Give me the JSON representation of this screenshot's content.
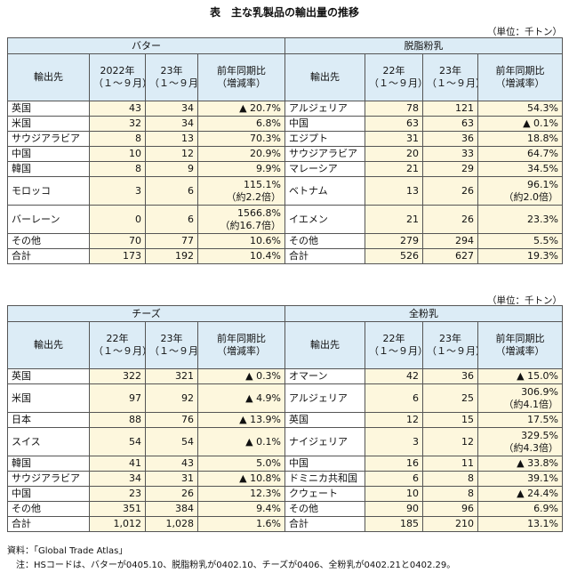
{
  "title": "表　主な乳製品の輸出量の推移",
  "tables": [
    {
      "unit": "（単位：千トン）",
      "left": {
        "name": "バター",
        "headers": [
          [
            "輸出先"
          ],
          [
            "2022年",
            "（１～９月）"
          ],
          [
            "23年",
            "（１～９月）"
          ],
          [
            "前年同期比",
            "（増減率）"
          ]
        ],
        "rows": [
          [
            [
              "英国"
            ],
            [
              "43"
            ],
            [
              "34"
            ],
            [
              "▲ 20.7%"
            ]
          ],
          [
            [
              "米国"
            ],
            [
              "32"
            ],
            [
              "34"
            ],
            [
              "6.8%"
            ]
          ],
          [
            [
              "サウジアラビア"
            ],
            [
              "8"
            ],
            [
              "13"
            ],
            [
              "70.3%"
            ]
          ],
          [
            [
              "中国"
            ],
            [
              "10"
            ],
            [
              "12"
            ],
            [
              "20.9%"
            ]
          ],
          [
            [
              "韓国"
            ],
            [
              "8"
            ],
            [
              "9"
            ],
            [
              "9.9%"
            ]
          ],
          [
            [
              "モロッコ"
            ],
            [
              "3"
            ],
            [
              "6"
            ],
            [
              "115.1%",
              "（約2.2倍）"
            ]
          ],
          [
            [
              "バーレーン"
            ],
            [
              "0"
            ],
            [
              "6"
            ],
            [
              "1566.8%",
              "（約16.7倍）"
            ]
          ],
          [
            [
              "その他"
            ],
            [
              "70"
            ],
            [
              "77"
            ],
            [
              "10.6%"
            ]
          ],
          [
            [
              "合計"
            ],
            [
              "173"
            ],
            [
              "192"
            ],
            [
              "10.4%"
            ]
          ]
        ]
      },
      "right": {
        "name": "脱脂粉乳",
        "headers": [
          [
            "輸出先"
          ],
          [
            "22年",
            "（１～９月）"
          ],
          [
            "23年",
            "（１～９月）"
          ],
          [
            "前年同期比",
            "（増減率）"
          ]
        ],
        "rows": [
          [
            [
              "アルジェリア"
            ],
            [
              "78"
            ],
            [
              "121"
            ],
            [
              "54.3%"
            ]
          ],
          [
            [
              "中国"
            ],
            [
              "63"
            ],
            [
              "63"
            ],
            [
              "▲ 0.1%"
            ]
          ],
          [
            [
              "エジプト"
            ],
            [
              "31"
            ],
            [
              "36"
            ],
            [
              "18.8%"
            ]
          ],
          [
            [
              "サウジアラビア"
            ],
            [
              "20"
            ],
            [
              "33"
            ],
            [
              "64.7%"
            ]
          ],
          [
            [
              "マレーシア"
            ],
            [
              "21"
            ],
            [
              "29"
            ],
            [
              "34.5%"
            ]
          ],
          [
            [
              "ベトナム"
            ],
            [
              "13"
            ],
            [
              "26"
            ],
            [
              "96.1%",
              "（約2.0倍）"
            ]
          ],
          [
            [
              "イエメン"
            ],
            [
              "21"
            ],
            [
              "26"
            ],
            [
              "23.3%"
            ]
          ],
          [
            [
              "その他"
            ],
            [
              "279"
            ],
            [
              "294"
            ],
            [
              "5.5%"
            ]
          ],
          [
            [
              "合計"
            ],
            [
              "526"
            ],
            [
              "627"
            ],
            [
              "19.3%"
            ]
          ]
        ]
      }
    },
    {
      "unit": "（単位：千トン）",
      "left": {
        "name": "チーズ",
        "headers": [
          [
            "輸出先"
          ],
          [
            "22年",
            "（１～９月）"
          ],
          [
            "23年",
            "（１～９月）"
          ],
          [
            "前年同期比",
            "（増減率）"
          ]
        ],
        "rows": [
          [
            [
              "英国"
            ],
            [
              "322"
            ],
            [
              "321"
            ],
            [
              "▲ 0.3%"
            ]
          ],
          [
            [
              "米国"
            ],
            [
              "97"
            ],
            [
              "92"
            ],
            [
              "▲ 4.9%"
            ]
          ],
          [
            [
              "日本"
            ],
            [
              "88"
            ],
            [
              "76"
            ],
            [
              "▲ 13.9%"
            ]
          ],
          [
            [
              "スイス"
            ],
            [
              "54"
            ],
            [
              "54"
            ],
            [
              "▲ 0.1%"
            ]
          ],
          [
            [
              "韓国"
            ],
            [
              "41"
            ],
            [
              "43"
            ],
            [
              "5.0%"
            ]
          ],
          [
            [
              "サウジアラビア"
            ],
            [
              "34"
            ],
            [
              "31"
            ],
            [
              "▲ 10.8%"
            ]
          ],
          [
            [
              "中国"
            ],
            [
              "23"
            ],
            [
              "26"
            ],
            [
              "12.3%"
            ]
          ],
          [
            [
              "その他"
            ],
            [
              "351"
            ],
            [
              "384"
            ],
            [
              "9.4%"
            ]
          ],
          [
            [
              "合計"
            ],
            [
              "1,012"
            ],
            [
              "1,028"
            ],
            [
              "1.6%"
            ]
          ]
        ]
      },
      "right": {
        "name": "全粉乳",
        "headers": [
          [
            "輸出先"
          ],
          [
            "22年",
            "（１～９月）"
          ],
          [
            "23年",
            "（１～９月）"
          ],
          [
            "前年同期比",
            "（増減率）"
          ]
        ],
        "rows": [
          [
            [
              "オマーン"
            ],
            [
              "42"
            ],
            [
              "36"
            ],
            [
              "▲ 15.0%"
            ]
          ],
          [
            [
              "アルジェリア"
            ],
            [
              "6"
            ],
            [
              "25"
            ],
            [
              "306.9%",
              "（約4.1倍）"
            ]
          ],
          [
            [
              "英国"
            ],
            [
              "12"
            ],
            [
              "15"
            ],
            [
              "17.5%"
            ]
          ],
          [
            [
              "ナイジェリア"
            ],
            [
              "3"
            ],
            [
              "12"
            ],
            [
              "329.5%",
              "（約4.3倍）"
            ]
          ],
          [
            [
              "中国"
            ],
            [
              "16"
            ],
            [
              "11"
            ],
            [
              "▲ 33.8%"
            ]
          ],
          [
            [
              "ドミニカ共和国"
            ],
            [
              "6"
            ],
            [
              "8"
            ],
            [
              "39.1%"
            ]
          ],
          [
            [
              "クウェート"
            ],
            [
              "10"
            ],
            [
              "8"
            ],
            [
              "▲ 24.4%"
            ]
          ],
          [
            [
              "その他"
            ],
            [
              "90"
            ],
            [
              "96"
            ],
            [
              "6.9%"
            ]
          ],
          [
            [
              "合計"
            ],
            [
              "185"
            ],
            [
              "210"
            ],
            [
              "13.1%"
            ]
          ]
        ]
      }
    }
  ],
  "notes": [
    "資料：「Global Trade Atlas」",
    "　注：HSコードは、バターが0405.10、脱脂粉乳が0402.10、チーズが0406、全粉乳が0402.21と0402.29。"
  ]
}
